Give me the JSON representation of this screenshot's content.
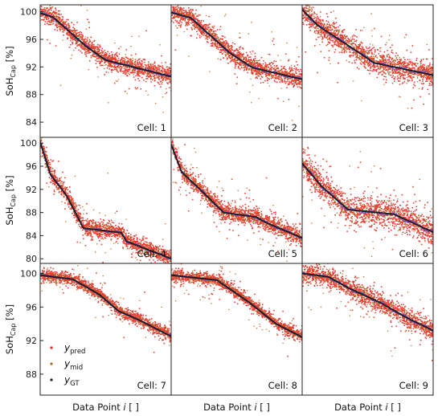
{
  "colors": {
    "pred": "#e8261b",
    "mid": "#b5651d",
    "gt": "#1c1c2e",
    "mid_line": "#6a4fc9"
  },
  "legend": {
    "entries": [
      {
        "key": "pred",
        "base": "y",
        "sub": "pred"
      },
      {
        "key": "mid",
        "base": "y",
        "sub": "mid"
      },
      {
        "key": "gt",
        "base": "y",
        "sub": "GT"
      }
    ]
  },
  "chart_data": [
    {
      "type": "scatter",
      "row": 0,
      "col": 0,
      "label": "Cell: 1",
      "ylabel_base": "SoH",
      "ylabel_sub": "Cap",
      "ylabel_unit": " [%]",
      "yticks": [
        100,
        96,
        92,
        88,
        84
      ],
      "ylim": [
        81.8,
        101
      ],
      "xlabel_base": "",
      "xlabel_var": "",
      "xlabel_unit": "",
      "gt": [
        [
          0,
          99.8
        ],
        [
          0.1,
          99.2
        ],
        [
          0.35,
          95.0
        ],
        [
          0.5,
          93.0
        ],
        [
          0.75,
          91.8
        ],
        [
          1,
          90.6
        ]
      ],
      "noise": 0.9
    },
    {
      "type": "scatter",
      "row": 0,
      "col": 1,
      "label": "Cell: 2",
      "ylabel_base": "",
      "ylabel_sub": "",
      "ylabel_unit": "",
      "yticks": [],
      "ylim": [
        81.8,
        101
      ],
      "xlabel_base": "",
      "xlabel_var": "",
      "xlabel_unit": "",
      "gt": [
        [
          0,
          99.9
        ],
        [
          0.15,
          99.1
        ],
        [
          0.45,
          94.0
        ],
        [
          0.62,
          91.9
        ],
        [
          1,
          90.2
        ]
      ],
      "noise": 0.9
    },
    {
      "type": "scatter",
      "row": 0,
      "col": 2,
      "label": "Cell: 3",
      "ylabel_base": "",
      "ylabel_sub": "",
      "ylabel_unit": "",
      "yticks": [],
      "ylim": [
        81.8,
        101
      ],
      "xlabel_base": "",
      "xlabel_var": "",
      "xlabel_unit": "",
      "gt": [
        [
          0,
          100.3
        ],
        [
          0.12,
          98.0
        ],
        [
          0.4,
          94.5
        ],
        [
          0.55,
          92.6
        ],
        [
          1,
          90.8
        ]
      ],
      "noise": 1.2
    },
    {
      "type": "scatter",
      "row": 1,
      "col": 0,
      "label": "Cell: 4",
      "ylabel_base": "SoH",
      "ylabel_sub": "Cap",
      "ylabel_unit": " [%]",
      "yticks": [
        100,
        96,
        92,
        88,
        84,
        80
      ],
      "ylim": [
        79.2,
        101
      ],
      "xlabel_base": "",
      "xlabel_var": "",
      "xlabel_unit": "",
      "gt": [
        [
          0,
          100.2
        ],
        [
          0.08,
          94.5
        ],
        [
          0.2,
          91.0
        ],
        [
          0.33,
          85.3
        ],
        [
          0.62,
          84.5
        ],
        [
          0.66,
          83.0
        ],
        [
          1,
          80.0
        ]
      ],
      "noise": 1.0
    },
    {
      "type": "scatter",
      "row": 1,
      "col": 1,
      "label": "Cell: 5",
      "ylabel_base": "",
      "ylabel_sub": "",
      "ylabel_unit": "",
      "yticks": [],
      "ylim": [
        79.2,
        101
      ],
      "xlabel_base": "",
      "xlabel_var": "",
      "xlabel_unit": "",
      "gt": [
        [
          0,
          99.8
        ],
        [
          0.08,
          95.0
        ],
        [
          0.22,
          92.0
        ],
        [
          0.4,
          88.0
        ],
        [
          0.65,
          87.2
        ],
        [
          0.72,
          86.3
        ],
        [
          1,
          83.6
        ]
      ],
      "noise": 1.0
    },
    {
      "type": "scatter",
      "row": 1,
      "col": 2,
      "label": "Cell: 6",
      "ylabel_base": "",
      "ylabel_sub": "",
      "ylabel_unit": "",
      "yticks": [],
      "ylim": [
        79.2,
        101
      ],
      "xlabel_base": "",
      "xlabel_var": "",
      "xlabel_unit": "",
      "gt": [
        [
          0,
          96.5
        ],
        [
          0.15,
          92.5
        ],
        [
          0.35,
          88.5
        ],
        [
          0.7,
          87.7
        ],
        [
          1,
          84.6
        ]
      ],
      "noise": 1.6
    },
    {
      "type": "scatter",
      "row": 2,
      "col": 0,
      "label": "Cell: 7",
      "ylabel_base": "SoH",
      "ylabel_sub": "Cap",
      "ylabel_unit": " [%]",
      "yticks": [
        100,
        96,
        92,
        88
      ],
      "ylim": [
        85.5,
        101.2
      ],
      "xlabel_base": "Data Point ",
      "xlabel_var": "i",
      "xlabel_unit": " [ ]",
      "gt": [
        [
          0,
          99.8
        ],
        [
          0.25,
          99.3
        ],
        [
          0.45,
          97.5
        ],
        [
          0.6,
          95.5
        ],
        [
          0.75,
          94.5
        ],
        [
          1,
          92.5
        ]
      ],
      "noise": 0.45
    },
    {
      "type": "scatter",
      "row": 2,
      "col": 1,
      "label": "Cell: 8",
      "ylabel_base": "",
      "ylabel_sub": "",
      "ylabel_unit": "",
      "yticks": [],
      "ylim": [
        85.5,
        101.2
      ],
      "xlabel_base": "Data Point ",
      "xlabel_var": "i",
      "xlabel_unit": " [ ]",
      "gt": [
        [
          0,
          99.8
        ],
        [
          0.35,
          99.2
        ],
        [
          0.6,
          96.5
        ],
        [
          0.8,
          94.0
        ],
        [
          1,
          92.4
        ]
      ],
      "noise": 0.45
    },
    {
      "type": "scatter",
      "row": 2,
      "col": 2,
      "label": "Cell: 9",
      "ylabel_base": "",
      "ylabel_sub": "",
      "ylabel_unit": "",
      "yticks": [],
      "ylim": [
        85.5,
        101.2
      ],
      "xlabel_base": "Data Point ",
      "xlabel_var": "i",
      "xlabel_unit": " [ ]",
      "gt": [
        [
          0,
          100.0
        ],
        [
          0.2,
          99.6
        ],
        [
          0.35,
          98.3
        ],
        [
          0.6,
          96.5
        ],
        [
          0.8,
          94.7
        ],
        [
          1,
          93.2
        ]
      ],
      "noise": 0.8
    }
  ]
}
